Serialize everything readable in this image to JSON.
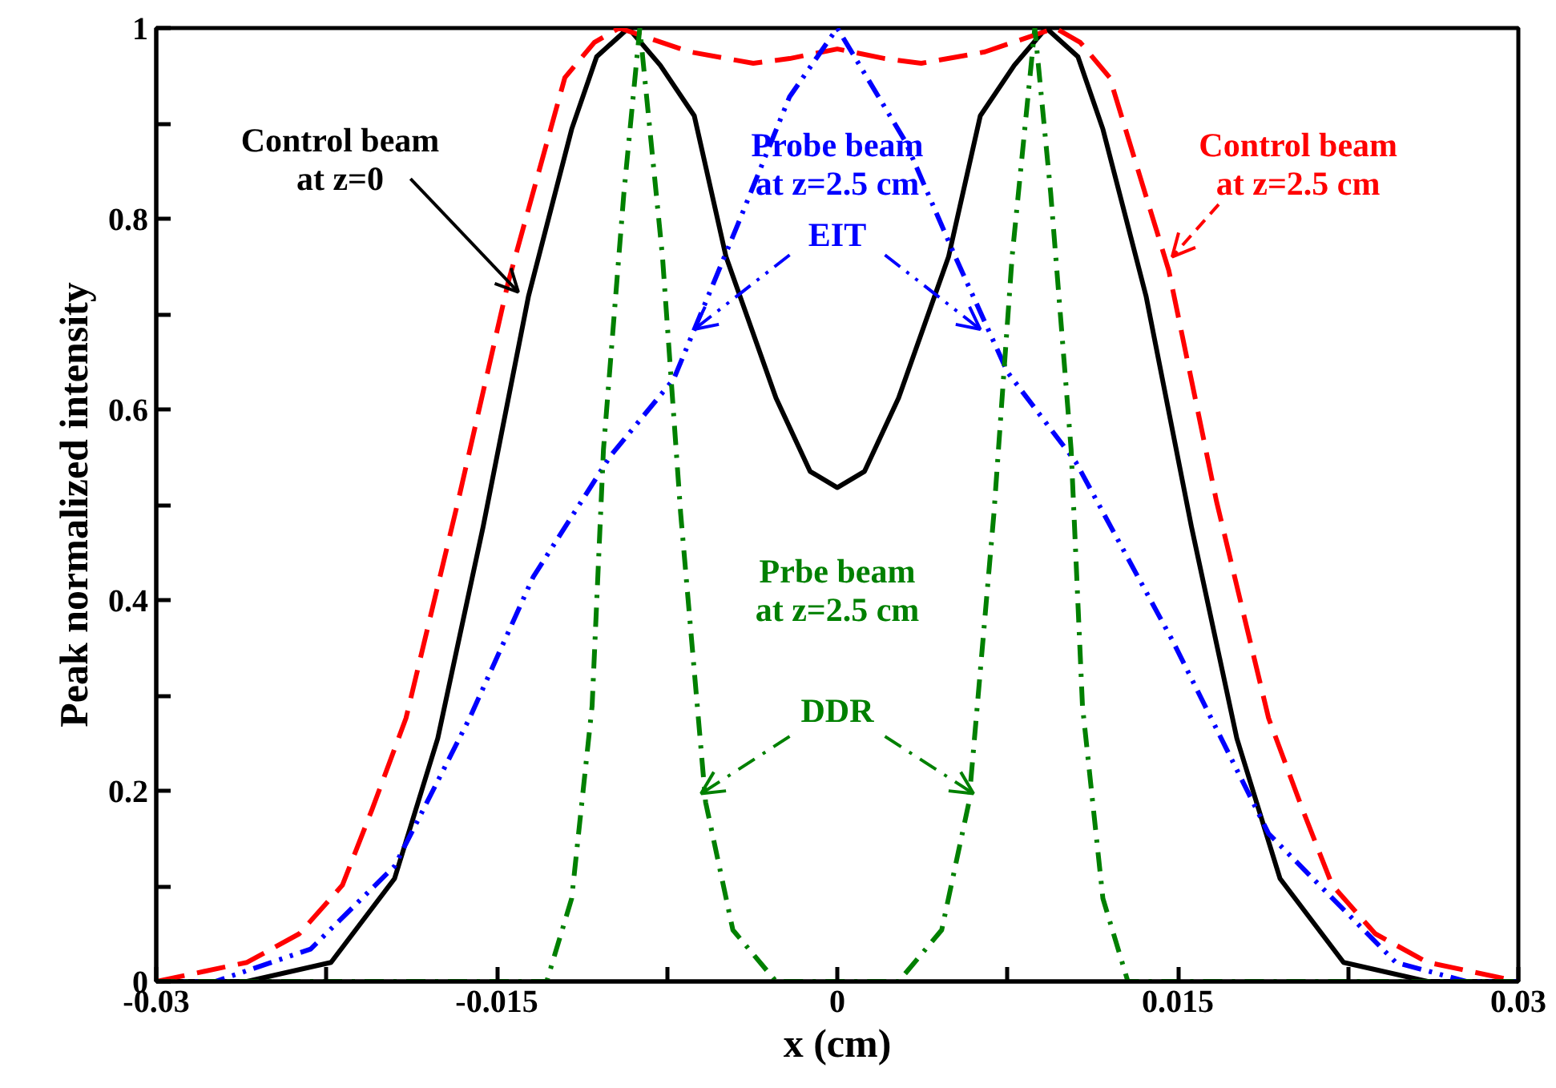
{
  "chart_data": {
    "type": "line",
    "xlabel": "x (cm)",
    "ylabel": "Peak normalized intensity",
    "xlim": [
      -0.03,
      0.03
    ],
    "ylim": [
      0,
      1
    ],
    "xticks": [
      -0.03,
      {
        "value": -0.0225,
        "label": null
      },
      -0.015,
      {
        "value": -0.0075,
        "label": null
      },
      0,
      {
        "value": 0.0075,
        "label": null
      },
      0.015,
      {
        "value": 0.0225,
        "label": null
      },
      0.03
    ],
    "yticks": [
      0,
      {
        "value": 0.1,
        "label": null
      },
      0.2,
      {
        "value": 0.3,
        "label": null
      },
      0.4,
      {
        "value": 0.5,
        "label": null
      },
      0.6,
      {
        "value": 0.7,
        "label": null
      },
      0.8,
      {
        "value": 0.9,
        "label": null
      },
      1
    ],
    "grid": false,
    "series": [
      {
        "color": "#000000",
        "line_style": "solid",
        "x": [
          -0.03,
          -0.026,
          -0.0223,
          -0.0195,
          -0.0176,
          -0.0156,
          -0.0136,
          -0.0117,
          -0.0106,
          -0.0092,
          -0.0078,
          -0.0063,
          -0.0049,
          -0.0027,
          -0.0012,
          0,
          0.0012,
          0.0027,
          0.0049,
          0.0063,
          0.0078,
          0.0092,
          0.0106,
          0.0117,
          0.0136,
          0.0156,
          0.0176,
          0.0195,
          0.0223,
          0.026,
          0.03
        ],
        "values": [
          0,
          0,
          0.02,
          0.108,
          0.255,
          0.477,
          0.719,
          0.894,
          0.97,
          1,
          0.961,
          0.908,
          0.76,
          0.612,
          0.535,
          0.518,
          0.535,
          0.612,
          0.76,
          0.908,
          0.961,
          1,
          0.97,
          0.894,
          0.719,
          0.477,
          0.255,
          0.108,
          0.02,
          0,
          0
        ]
      },
      {
        "color": "#ff0000",
        "line_style": "dashed",
        "x": [
          -0.03,
          -0.026,
          -0.0237,
          -0.0218,
          -0.0205,
          -0.019,
          -0.0167,
          -0.0145,
          -0.012,
          -0.0107,
          -0.0096,
          -0.0065,
          -0.0037,
          -0.0021,
          0,
          0.0021,
          0.0037,
          0.0065,
          0.0096,
          0.0107,
          0.012,
          0.0146,
          0.0167,
          0.019,
          0.0205,
          0.0218,
          0.0237,
          0.026,
          0.03
        ],
        "values": [
          0,
          0.02,
          0.05,
          0.101,
          0.18,
          0.276,
          0.504,
          0.733,
          0.948,
          0.985,
          1,
          0.975,
          0.963,
          0.968,
          0.978,
          0.968,
          0.963,
          0.975,
          1,
          0.985,
          0.948,
          0.746,
          0.504,
          0.276,
          0.18,
          0.101,
          0.05,
          0.02,
          0
        ]
      },
      {
        "color": "#0000ff",
        "line_style": "dashdotdot",
        "x": [
          -0.03,
          -0.0274,
          -0.0232,
          -0.0195,
          -0.0162,
          -0.0134,
          -0.01,
          -0.0072,
          -0.0044,
          -0.0021,
          0,
          0.003,
          0.0052,
          0.0075,
          0.0105,
          0.0148,
          0.019,
          0.0246,
          0.0277,
          0.03
        ],
        "values": [
          0,
          0,
          0.034,
          0.121,
          0.276,
          0.424,
          0.551,
          0.632,
          0.793,
          0.928,
          1,
          0.881,
          0.76,
          0.639,
          0.545,
          0.356,
          0.155,
          0.02,
          0,
          0
        ]
      },
      {
        "color": "#008000",
        "line_style": "dashdot",
        "x": [
          -0.03,
          -0.0128,
          -0.0117,
          -0.0108,
          -0.0103,
          -0.0094,
          -0.0087,
          -0.0077,
          -0.0069,
          -0.0058,
          -0.0046,
          -0.0027,
          0,
          0.0027,
          0.0046,
          0.0058,
          0.0069,
          0.0077,
          0.0087,
          0.0094,
          0.0103,
          0.0108,
          0.0117,
          0.0128,
          0.03
        ],
        "values": [
          0,
          0,
          0.087,
          0.289,
          0.558,
          0.827,
          1,
          0.76,
          0.491,
          0.188,
          0.054,
          0,
          0,
          0,
          0.054,
          0.188,
          0.491,
          0.76,
          1,
          0.827,
          0.558,
          0.289,
          0.087,
          0,
          0
        ]
      }
    ],
    "annotations": [
      {
        "text": "Control beam\nat z=0",
        "x": -0.01405,
        "y": 0.723
      },
      "Probe beam\nat z=2.5 cm",
      {
        "text": "EIT",
        "x": -0.0063,
        "y": 0.684
      },
      {
        "text": "Control beam\nat z=2.5 cm",
        "x": 0.01475,
        "y": 0.76
      },
      "Prbe beam\nat z=2.5 cm",
      {
        "text": "DDR",
        "x": -0.006,
        "y": 0.197
      }
    ]
  }
}
